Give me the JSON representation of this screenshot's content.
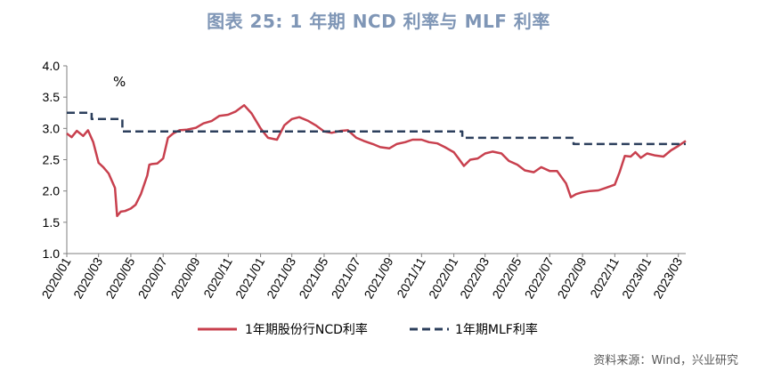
{
  "title": "图表 25: 1 年期 NCD 利率与 MLF 利率",
  "source": "资料来源：Wind，兴业研究",
  "colors": {
    "title": "#7f96b6",
    "ncd": "#c8404e",
    "mlf": "#2c3f5c",
    "axis": "#7f7f7f"
  },
  "chart_data": {
    "type": "line",
    "title": "图表 25: 1 年期 NCD 利率与 MLF 利率",
    "ylabel": "%",
    "ylim": [
      1.0,
      4.0
    ],
    "yticks": [
      "1.0",
      "1.5",
      "2.0",
      "2.5",
      "3.0",
      "3.5",
      "4.0"
    ],
    "xlim": [
      "2020-01-01",
      "2023-03-15"
    ],
    "xticks": [
      "2020/01",
      "2020/03",
      "2020/05",
      "2020/07",
      "2020/09",
      "2020/11",
      "2021/01",
      "2021/03",
      "2021/05",
      "2021/07",
      "2021/09",
      "2021/11",
      "2022/01",
      "2022/03",
      "2022/05",
      "2022/07",
      "2022/09",
      "2022/11",
      "2023/01",
      "2023/03"
    ],
    "grid": false,
    "legend_position": "bottom",
    "series": [
      {
        "name": "1年期股份行NCD利率",
        "style": "solid",
        "x": [
          "2020-01-01",
          "2020-01-10",
          "2020-01-20",
          "2020-02-01",
          "2020-02-10",
          "2020-02-20",
          "2020-03-01",
          "2020-03-10",
          "2020-03-20",
          "2020-04-01",
          "2020-04-05",
          "2020-04-12",
          "2020-04-20",
          "2020-05-01",
          "2020-05-10",
          "2020-05-20",
          "2020-06-01",
          "2020-06-05",
          "2020-06-10",
          "2020-06-20",
          "2020-07-01",
          "2020-07-10",
          "2020-07-20",
          "2020-08-01",
          "2020-08-15",
          "2020-09-01",
          "2020-09-15",
          "2020-10-01",
          "2020-10-15",
          "2020-11-01",
          "2020-11-15",
          "2020-12-01",
          "2020-12-15",
          "2021-01-01",
          "2021-01-15",
          "2021-02-01",
          "2021-02-15",
          "2021-03-01",
          "2021-03-15",
          "2021-04-01",
          "2021-04-15",
          "2021-05-01",
          "2021-05-15",
          "2021-06-01",
          "2021-06-15",
          "2021-07-01",
          "2021-07-15",
          "2021-08-01",
          "2021-08-15",
          "2021-09-01",
          "2021-09-15",
          "2021-10-01",
          "2021-10-15",
          "2021-11-01",
          "2021-11-15",
          "2021-12-01",
          "2021-12-15",
          "2022-01-01",
          "2022-01-10",
          "2022-01-20",
          "2022-02-01",
          "2022-02-15",
          "2022-03-01",
          "2022-03-15",
          "2022-04-01",
          "2022-04-15",
          "2022-05-01",
          "2022-05-15",
          "2022-06-01",
          "2022-06-15",
          "2022-07-01",
          "2022-07-15",
          "2022-08-01",
          "2022-08-10",
          "2022-08-20",
          "2022-09-01",
          "2022-09-15",
          "2022-10-01",
          "2022-10-15",
          "2022-11-01",
          "2022-11-10",
          "2022-11-20",
          "2022-12-01",
          "2022-12-10",
          "2022-12-20",
          "2023-01-01",
          "2023-01-15",
          "2023-02-01",
          "2023-02-15",
          "2023-03-01",
          "2023-03-15"
        ],
        "values": [
          2.92,
          2.86,
          2.96,
          2.88,
          2.97,
          2.78,
          2.45,
          2.38,
          2.28,
          2.05,
          1.6,
          1.67,
          1.68,
          1.72,
          1.78,
          1.95,
          2.25,
          2.42,
          2.43,
          2.44,
          2.52,
          2.85,
          2.92,
          2.97,
          2.98,
          3.01,
          3.08,
          3.12,
          3.2,
          3.22,
          3.27,
          3.37,
          3.24,
          3.0,
          2.85,
          2.82,
          3.05,
          3.15,
          3.18,
          3.12,
          3.05,
          2.95,
          2.93,
          2.96,
          2.97,
          2.85,
          2.8,
          2.75,
          2.7,
          2.68,
          2.75,
          2.78,
          2.82,
          2.82,
          2.78,
          2.76,
          2.7,
          2.62,
          2.52,
          2.4,
          2.5,
          2.52,
          2.6,
          2.63,
          2.6,
          2.48,
          2.42,
          2.33,
          2.3,
          2.38,
          2.32,
          2.32,
          2.12,
          1.9,
          1.95,
          1.98,
          2.0,
          2.01,
          2.05,
          2.1,
          2.3,
          2.56,
          2.55,
          2.62,
          2.53,
          2.6,
          2.57,
          2.55,
          2.65,
          2.72,
          2.8
        ]
      },
      {
        "name": "1年期MLF利率",
        "style": "dashed",
        "x": [
          "2020-01-01",
          "2020-02-17",
          "2020-02-17",
          "2020-04-15",
          "2020-04-15",
          "2022-01-17",
          "2022-01-17",
          "2022-08-15",
          "2022-08-15",
          "2023-03-15"
        ],
        "values": [
          3.25,
          3.25,
          3.15,
          3.15,
          2.95,
          2.95,
          2.85,
          2.85,
          2.75,
          2.75
        ]
      }
    ]
  }
}
